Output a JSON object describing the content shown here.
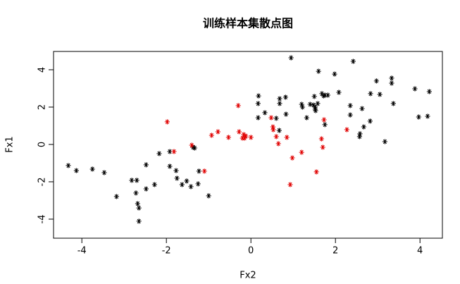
{
  "chart_data": {
    "type": "scatter",
    "title": "训练样本集散点图",
    "x_label": "Fx2",
    "y_label": "Fx1",
    "xlim": [
      -4.67,
      4.53
    ],
    "ylim": [
      -5.02,
      4.98
    ],
    "xticks": [
      -4,
      -2,
      0,
      2,
      4
    ],
    "yticks": [
      -4,
      -2,
      0,
      2,
      4
    ],
    "series": [
      {
        "color": "#000000",
        "x": [
          -4.32,
          -4.13,
          -3.75,
          -3.47,
          -3.18,
          -2.82,
          -2.7,
          -2.72,
          -2.68,
          -2.65,
          -2.65,
          -2.48,
          -2.48,
          -2.28,
          -2.17,
          -1.92,
          -1.92,
          -1.77,
          -1.75,
          -1.63,
          -1.52,
          -1.42,
          -1.37,
          -1.33,
          -1.25,
          -1.23,
          -1.0,
          0.17,
          0.18,
          0.17,
          0.33,
          0.6,
          0.67,
          0.68,
          0.82,
          0.68,
          0.83,
          0.95,
          1.2,
          1.22,
          1.32,
          1.4,
          1.5,
          1.48,
          1.52,
          1.53,
          1.52,
          1.58,
          1.6,
          1.68,
          1.72,
          1.75,
          1.82,
          1.75,
          1.98,
          2.08,
          2.35,
          2.35,
          2.42,
          2.57,
          2.58,
          2.63,
          2.67,
          2.82,
          2.83,
          2.97,
          3.05,
          3.17,
          3.33,
          3.33,
          3.37,
          3.88,
          3.97,
          4.18,
          4.22
        ],
        "values": [
          -1.13,
          -1.4,
          -1.32,
          -1.51,
          -2.79,
          -1.92,
          -1.92,
          -2.6,
          -3.17,
          -3.4,
          -4.11,
          -1.09,
          -2.38,
          -2.15,
          -0.49,
          -1.17,
          -0.38,
          -1.4,
          -1.81,
          -2.15,
          -1.96,
          -2.26,
          -0.15,
          -0.19,
          -2.11,
          -1.43,
          -2.75,
          1.43,
          2.6,
          2.19,
          1.7,
          1.4,
          0.75,
          2.45,
          2.53,
          2.19,
          1.62,
          4.64,
          2.15,
          2.0,
          1.43,
          2.15,
          2.57,
          2.11,
          1.89,
          1.81,
          2.0,
          2.19,
          3.92,
          2.72,
          2.6,
          2.64,
          2.64,
          1.06,
          3.77,
          2.79,
          2.08,
          1.58,
          4.45,
          0.42,
          0.57,
          1.92,
          0.94,
          1.25,
          2.72,
          3.4,
          2.68,
          0.15,
          3.55,
          3.28,
          2.19,
          2.98,
          1.47,
          1.51,
          2.83
        ]
      },
      {
        "color": "#e00000",
        "x": [
          -1.98,
          -1.82,
          -1.4,
          -1.1,
          -0.93,
          -0.78,
          -0.53,
          -0.3,
          -0.28,
          -0.2,
          -0.17,
          -0.15,
          -0.12,
          0.0,
          0.48,
          0.52,
          0.53,
          0.6,
          0.65,
          0.85,
          0.98,
          1.2,
          0.93,
          1.55,
          1.67,
          1.7,
          1.73,
          2.27
        ],
        "values": [
          1.21,
          -0.38,
          -0.04,
          -1.43,
          0.49,
          0.68,
          0.38,
          2.08,
          0.68,
          0.34,
          0.53,
          0.34,
          0.45,
          0.38,
          1.43,
          0.94,
          0.79,
          0.42,
          0.04,
          0.38,
          -0.72,
          -0.42,
          -2.15,
          -1.47,
          0.3,
          -0.15,
          1.32,
          0.79
        ]
      }
    ]
  }
}
